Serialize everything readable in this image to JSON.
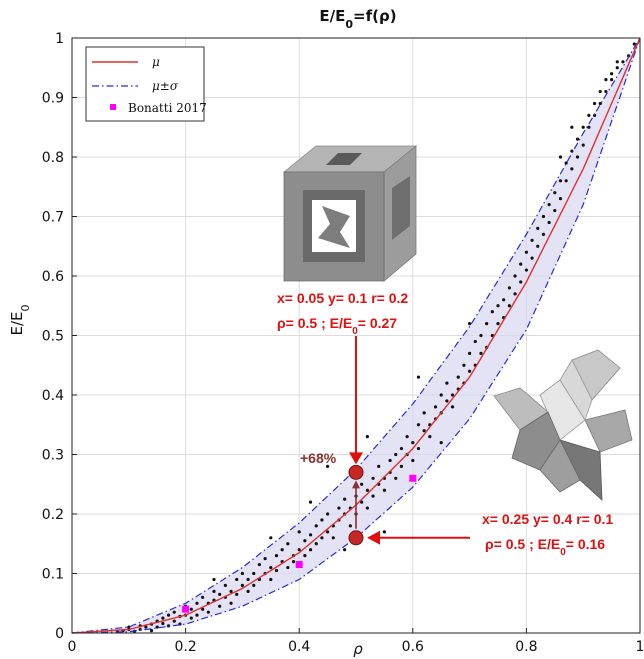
{
  "chart_data": {
    "type": "scatter",
    "title": "E/E",
    "title_sub": "0",
    "title_tail": "=f(ρ)",
    "xlabel": "ρ",
    "ylabel": "E/E",
    "ylabel_sub": "0",
    "xlim": [
      0,
      1
    ],
    "ylim": [
      0,
      1
    ],
    "xticks": [
      "0",
      "0.2",
      "0.4",
      "0.6",
      "0.8",
      "1"
    ],
    "yticks": [
      "0",
      "0.1",
      "0.2",
      "0.3",
      "0.4",
      "0.5",
      "0.6",
      "0.7",
      "0.8",
      "0.9",
      "1"
    ],
    "grid": true,
    "legend_position": "top-left",
    "legend": [
      {
        "label": "μ",
        "style": "solid",
        "color": "#e03030"
      },
      {
        "label": "μ±σ",
        "style": "dash-dot",
        "color": "#2a2ad8"
      },
      {
        "label": "Bonatti 2017",
        "style": "square-marker",
        "color": "#ff00ff"
      }
    ],
    "mean_curve": {
      "name": "μ",
      "x": [
        0,
        0.1,
        0.2,
        0.3,
        0.4,
        0.5,
        0.6,
        0.7,
        0.8,
        0.9,
        1.0
      ],
      "y": [
        0,
        0.006,
        0.03,
        0.075,
        0.135,
        0.215,
        0.31,
        0.43,
        0.59,
        0.78,
        1.0
      ]
    },
    "upper_curve": {
      "name": "μ+σ",
      "x": [
        0,
        0.1,
        0.2,
        0.3,
        0.4,
        0.5,
        0.6,
        0.7,
        0.8,
        0.9,
        1.0
      ],
      "y": [
        0,
        0.01,
        0.05,
        0.11,
        0.185,
        0.275,
        0.385,
        0.515,
        0.67,
        0.84,
        1.0
      ]
    },
    "lower_curve": {
      "name": "μ−σ",
      "x": [
        0,
        0.1,
        0.2,
        0.3,
        0.4,
        0.5,
        0.6,
        0.7,
        0.8,
        0.9,
        1.0
      ],
      "y": [
        0,
        0.002,
        0.015,
        0.045,
        0.09,
        0.16,
        0.245,
        0.36,
        0.51,
        0.72,
        1.0
      ]
    },
    "bonatti_2017": {
      "name": "Bonatti 2017",
      "x": [
        0.2,
        0.4,
        0.6
      ],
      "y": [
        0.04,
        0.115,
        0.26
      ]
    },
    "scatter_description": "Black simulation points scattered within the μ±σ band",
    "scatter_points": [
      [
        0.08,
        0.002
      ],
      [
        0.09,
        0.004
      ],
      [
        0.1,
        0.006
      ],
      [
        0.1,
        0.01
      ],
      [
        0.11,
        0.003
      ],
      [
        0.12,
        0.012
      ],
      [
        0.12,
        0.006
      ],
      [
        0.13,
        0.01
      ],
      [
        0.14,
        0.015
      ],
      [
        0.14,
        0.004
      ],
      [
        0.15,
        0.02
      ],
      [
        0.15,
        0.01
      ],
      [
        0.16,
        0.025
      ],
      [
        0.16,
        0.016
      ],
      [
        0.17,
        0.012
      ],
      [
        0.17,
        0.03
      ],
      [
        0.18,
        0.02
      ],
      [
        0.18,
        0.035
      ],
      [
        0.19,
        0.028
      ],
      [
        0.19,
        0.015
      ],
      [
        0.2,
        0.03
      ],
      [
        0.2,
        0.045
      ],
      [
        0.21,
        0.025
      ],
      [
        0.21,
        0.04
      ],
      [
        0.22,
        0.05
      ],
      [
        0.22,
        0.03
      ],
      [
        0.23,
        0.04
      ],
      [
        0.23,
        0.06
      ],
      [
        0.24,
        0.05
      ],
      [
        0.24,
        0.035
      ],
      [
        0.25,
        0.055
      ],
      [
        0.25,
        0.07
      ],
      [
        0.26,
        0.045
      ],
      [
        0.26,
        0.065
      ],
      [
        0.27,
        0.06
      ],
      [
        0.27,
        0.08
      ],
      [
        0.28,
        0.07
      ],
      [
        0.28,
        0.05
      ],
      [
        0.29,
        0.09
      ],
      [
        0.29,
        0.065
      ],
      [
        0.3,
        0.08
      ],
      [
        0.3,
        0.1
      ],
      [
        0.31,
        0.07
      ],
      [
        0.31,
        0.09
      ],
      [
        0.32,
        0.1
      ],
      [
        0.32,
        0.08
      ],
      [
        0.33,
        0.115
      ],
      [
        0.33,
        0.09
      ],
      [
        0.34,
        0.1
      ],
      [
        0.34,
        0.125
      ],
      [
        0.35,
        0.11
      ],
      [
        0.35,
        0.09
      ],
      [
        0.36,
        0.13
      ],
      [
        0.36,
        0.105
      ],
      [
        0.37,
        0.12
      ],
      [
        0.37,
        0.14
      ],
      [
        0.38,
        0.11
      ],
      [
        0.38,
        0.15
      ],
      [
        0.39,
        0.13
      ],
      [
        0.39,
        0.12
      ],
      [
        0.4,
        0.14
      ],
      [
        0.4,
        0.17
      ],
      [
        0.41,
        0.13
      ],
      [
        0.41,
        0.155
      ],
      [
        0.42,
        0.165
      ],
      [
        0.42,
        0.14
      ],
      [
        0.43,
        0.18
      ],
      [
        0.43,
        0.15
      ],
      [
        0.44,
        0.16
      ],
      [
        0.44,
        0.19
      ],
      [
        0.45,
        0.17
      ],
      [
        0.45,
        0.2
      ],
      [
        0.46,
        0.18
      ],
      [
        0.46,
        0.16
      ],
      [
        0.47,
        0.21
      ],
      [
        0.47,
        0.19
      ],
      [
        0.48,
        0.2
      ],
      [
        0.48,
        0.225
      ],
      [
        0.49,
        0.21
      ],
      [
        0.49,
        0.18
      ],
      [
        0.5,
        0.23
      ],
      [
        0.5,
        0.2
      ],
      [
        0.51,
        0.22
      ],
      [
        0.51,
        0.25
      ],
      [
        0.52,
        0.24
      ],
      [
        0.52,
        0.21
      ],
      [
        0.53,
        0.26
      ],
      [
        0.53,
        0.23
      ],
      [
        0.54,
        0.25
      ],
      [
        0.54,
        0.28
      ],
      [
        0.55,
        0.26
      ],
      [
        0.55,
        0.24
      ],
      [
        0.56,
        0.29
      ],
      [
        0.56,
        0.27
      ],
      [
        0.57,
        0.3
      ],
      [
        0.57,
        0.26
      ],
      [
        0.58,
        0.31
      ],
      [
        0.58,
        0.28
      ],
      [
        0.59,
        0.3
      ],
      [
        0.59,
        0.33
      ],
      [
        0.6,
        0.32
      ],
      [
        0.6,
        0.29
      ],
      [
        0.61,
        0.35
      ],
      [
        0.61,
        0.31
      ],
      [
        0.62,
        0.34
      ],
      [
        0.62,
        0.37
      ],
      [
        0.63,
        0.35
      ],
      [
        0.63,
        0.33
      ],
      [
        0.64,
        0.38
      ],
      [
        0.64,
        0.36
      ],
      [
        0.65,
        0.4
      ],
      [
        0.65,
        0.37
      ],
      [
        0.66,
        0.39
      ],
      [
        0.66,
        0.42
      ],
      [
        0.67,
        0.4
      ],
      [
        0.67,
        0.38
      ],
      [
        0.68,
        0.43
      ],
      [
        0.68,
        0.41
      ],
      [
        0.69,
        0.45
      ],
      [
        0.69,
        0.42
      ],
      [
        0.7,
        0.44
      ],
      [
        0.7,
        0.47
      ],
      [
        0.71,
        0.45
      ],
      [
        0.71,
        0.49
      ],
      [
        0.72,
        0.47
      ],
      [
        0.72,
        0.5
      ],
      [
        0.73,
        0.48
      ],
      [
        0.73,
        0.52
      ],
      [
        0.74,
        0.5
      ],
      [
        0.74,
        0.54
      ],
      [
        0.75,
        0.52
      ],
      [
        0.75,
        0.55
      ],
      [
        0.76,
        0.56
      ],
      [
        0.76,
        0.53
      ],
      [
        0.77,
        0.58
      ],
      [
        0.77,
        0.55
      ],
      [
        0.78,
        0.6
      ],
      [
        0.78,
        0.57
      ],
      [
        0.79,
        0.62
      ],
      [
        0.79,
        0.59
      ],
      [
        0.8,
        0.61
      ],
      [
        0.8,
        0.64
      ],
      [
        0.81,
        0.63
      ],
      [
        0.81,
        0.66
      ],
      [
        0.82,
        0.65
      ],
      [
        0.82,
        0.68
      ],
      [
        0.83,
        0.67
      ],
      [
        0.83,
        0.7
      ],
      [
        0.84,
        0.69
      ],
      [
        0.84,
        0.72
      ],
      [
        0.85,
        0.71
      ],
      [
        0.85,
        0.74
      ],
      [
        0.86,
        0.73
      ],
      [
        0.86,
        0.76
      ],
      [
        0.87,
        0.76
      ],
      [
        0.87,
        0.79
      ],
      [
        0.88,
        0.78
      ],
      [
        0.88,
        0.81
      ],
      [
        0.89,
        0.8
      ],
      [
        0.89,
        0.83
      ],
      [
        0.9,
        0.82
      ],
      [
        0.9,
        0.85
      ],
      [
        0.91,
        0.85
      ],
      [
        0.91,
        0.87
      ],
      [
        0.92,
        0.87
      ],
      [
        0.92,
        0.89
      ],
      [
        0.93,
        0.89
      ],
      [
        0.93,
        0.91
      ],
      [
        0.94,
        0.91
      ],
      [
        0.94,
        0.93
      ],
      [
        0.95,
        0.93
      ],
      [
        0.95,
        0.94
      ],
      [
        0.96,
        0.95
      ],
      [
        0.96,
        0.96
      ],
      [
        0.97,
        0.96
      ],
      [
        0.98,
        0.97
      ],
      [
        0.99,
        0.99
      ],
      [
        0.86,
        0.8
      ],
      [
        0.88,
        0.85
      ],
      [
        0.52,
        0.33
      ],
      [
        0.45,
        0.28
      ],
      [
        0.61,
        0.43
      ],
      [
        0.7,
        0.52
      ],
      [
        0.35,
        0.16
      ],
      [
        0.25,
        0.09
      ],
      [
        0.55,
        0.17
      ],
      [
        0.48,
        0.14
      ],
      [
        0.6,
        0.26
      ],
      [
        0.65,
        0.32
      ],
      [
        0.42,
        0.22
      ]
    ],
    "annotations": {
      "upper_point": {
        "x": 0.5,
        "y": 0.27
      },
      "lower_point": {
        "x": 0.5,
        "y": 0.16
      },
      "upper_line1": "x= 0.05 y= 0.1 r= 0.2",
      "upper_line2_pre": "ρ= 0.5 ; E/E",
      "upper_line2_sub": "0",
      "upper_line2_post": "= 0.27",
      "lower_line1": "x= 0.25 y= 0.4 r= 0.1",
      "lower_line2_pre": "ρ= 0.5 ; E/E",
      "lower_line2_sub": "0",
      "lower_line2_post": "= 0.16",
      "increase_label": "+68%"
    }
  },
  "colors": {
    "mean": "#e03030",
    "band_line": "#2a2ad8",
    "band_fill": "#d9d9f2",
    "points": "#111111",
    "bonatti": "#ff00ff",
    "annotation": "#e01010",
    "marker": "#c62828",
    "increase": "#8b3030",
    "grid": "#dcdcdc"
  }
}
